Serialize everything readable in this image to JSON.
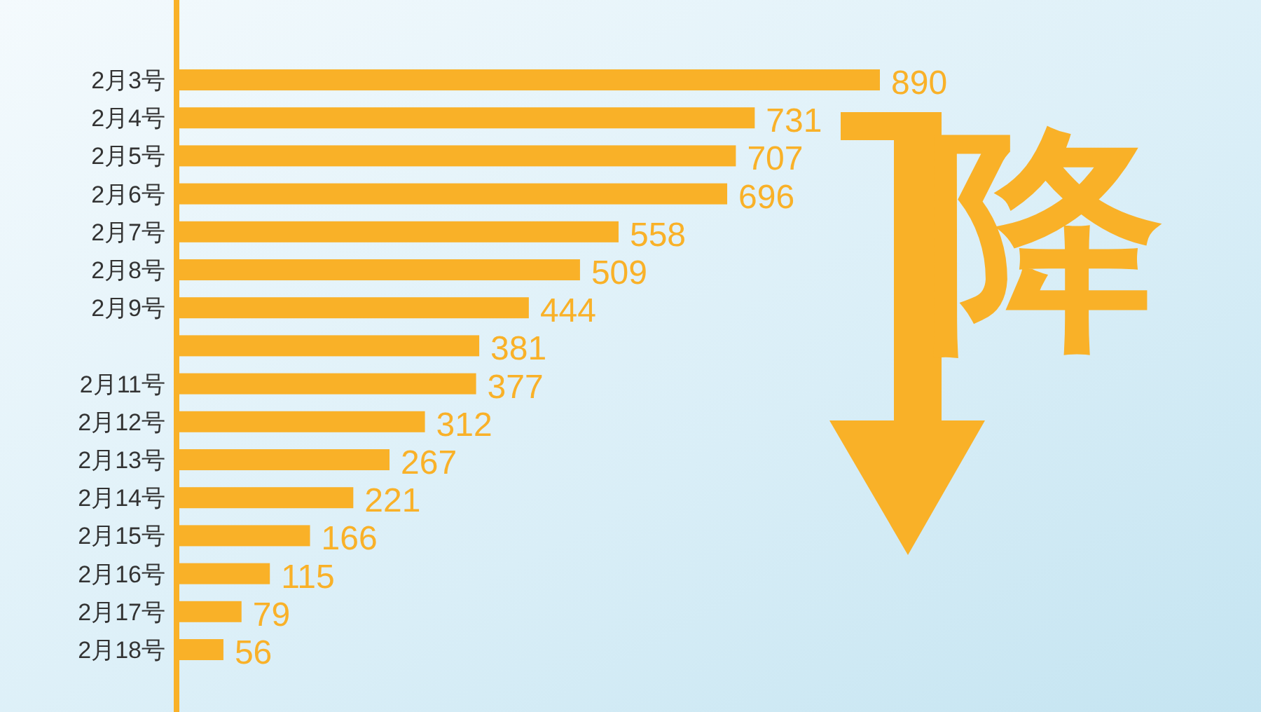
{
  "chart_data": {
    "type": "bar",
    "orientation": "horizontal",
    "categories": [
      "2月3号",
      "2月4号",
      "2月5号",
      "2月6号",
      "2月7号",
      "2月8号",
      "2月9号",
      null,
      "2月11号",
      "2月12号",
      "2月13号",
      "2月14号",
      "2月15号",
      "2月16号",
      "2月17号",
      "2月18号"
    ],
    "values": [
      890,
      731,
      707,
      696,
      558,
      509,
      444,
      381,
      377,
      312,
      267,
      221,
      166,
      115,
      79,
      56
    ],
    "color": "#f9b128",
    "data_labels": true,
    "annotations": [
      "降"
    ]
  }
}
